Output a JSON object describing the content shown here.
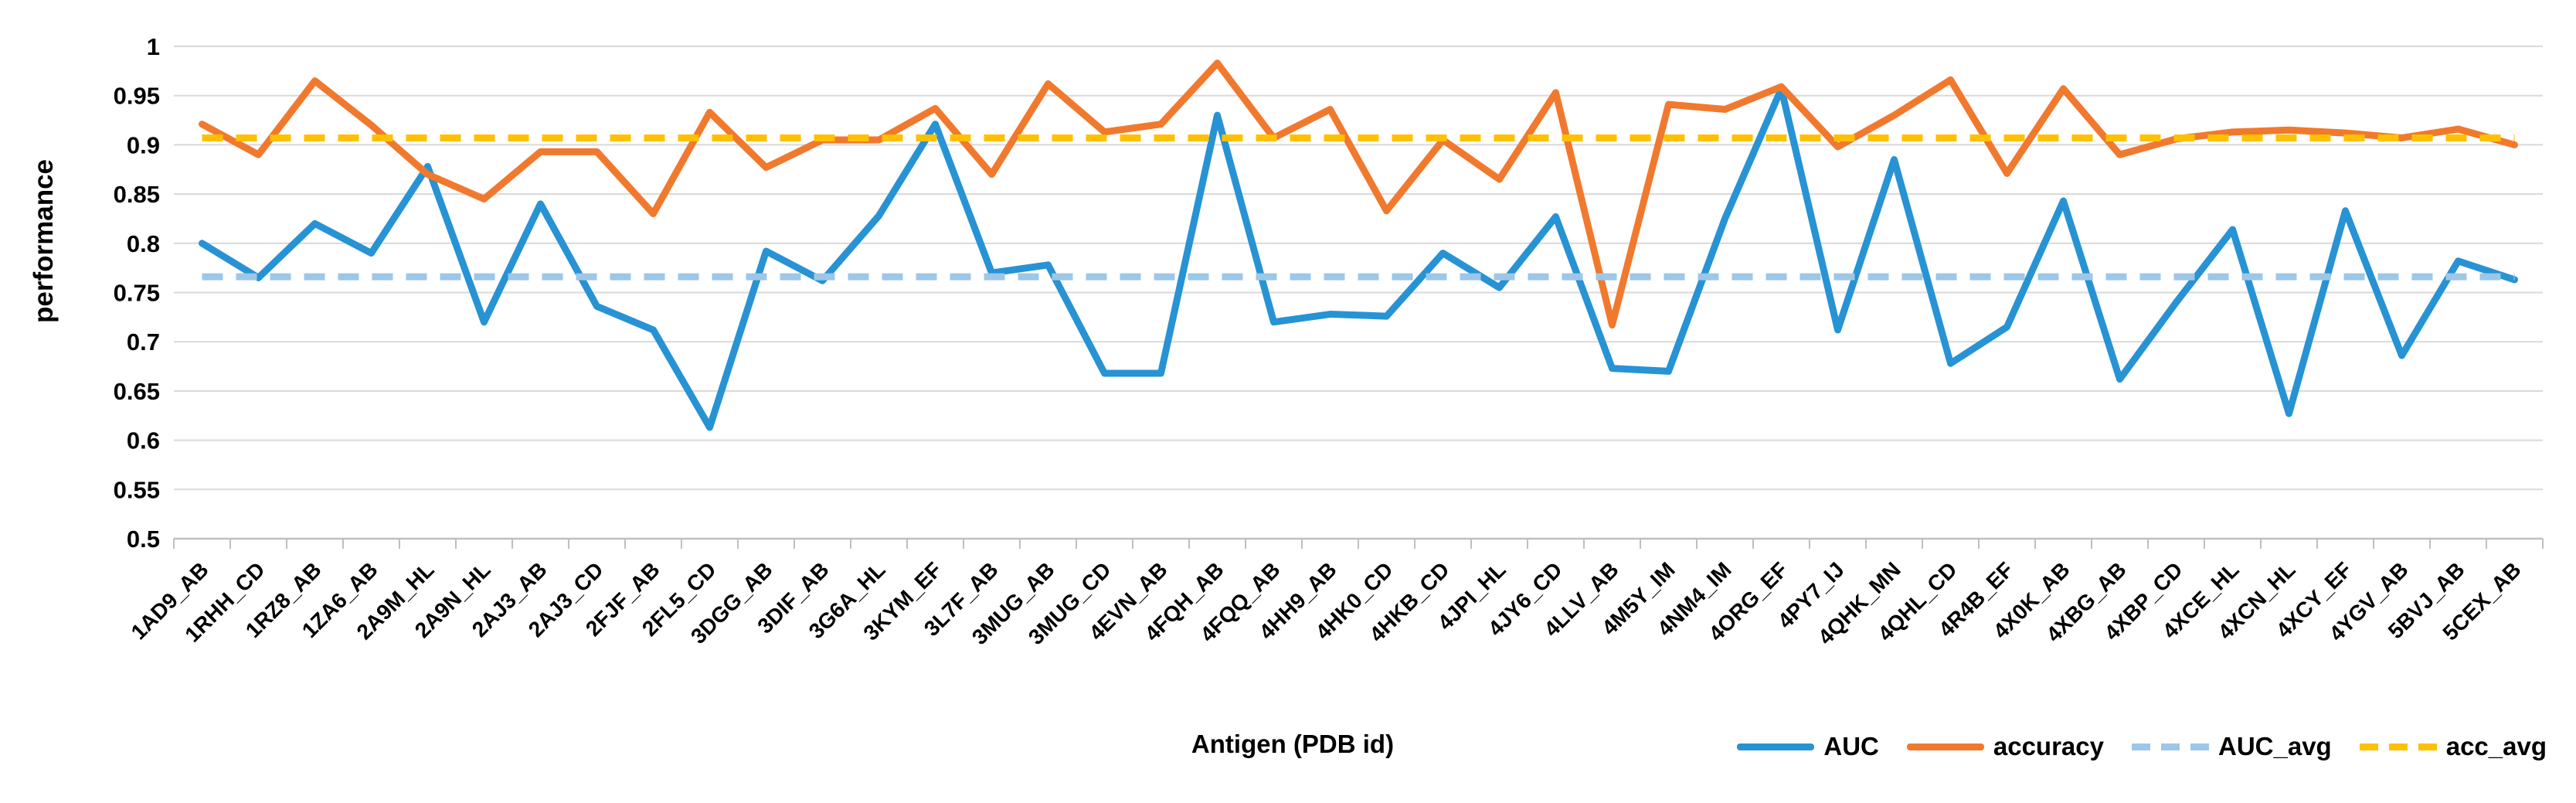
{
  "chart_data": {
    "type": "line",
    "title": "",
    "xlabel": "Antigen (PDB id)",
    "ylabel": "performance",
    "ylim": [
      0.5,
      1.0
    ],
    "ytick_step": 0.05,
    "ytick_labels": [
      "0.5",
      "0.55",
      "0.6",
      "0.65",
      "0.7",
      "0.75",
      "0.8",
      "0.85",
      "0.9",
      "0.95",
      "1"
    ],
    "grid": true,
    "legend_position": "bottom-right",
    "categories": [
      "1AD9_AB",
      "1RHH_CD",
      "1RZ8_AB",
      "1ZA6_AB",
      "2A9M_HL",
      "2A9N_HL",
      "2AJ3_AB",
      "2AJ3_CD",
      "2FJF_AB",
      "2FL5_CD",
      "3DGG_AB",
      "3DIF_AB",
      "3G6A_HL",
      "3KYM_EF",
      "3L7F_AB",
      "3MUG_AB",
      "3MUG_CD",
      "4EVN_AB",
      "4FQH_AB",
      "4FQQ_AB",
      "4HH9_AB",
      "4HK0_CD",
      "4HKB_CD",
      "4JPI_HL",
      "4JY6_CD",
      "4LLV_AB",
      "4M5Y_IM",
      "4NM4_IM",
      "4ORG_EF",
      "4PY7_IJ",
      "4QHK_MN",
      "4QHL_CD",
      "4R4B_EF",
      "4X0K_AB",
      "4XBG_AB",
      "4XBP_CD",
      "4XCE_HL",
      "4XCN_HL",
      "4XCY_EF",
      "4YGV_AB",
      "5BVJ_AB",
      "5CEX_AB"
    ],
    "series": [
      {
        "name": "AUC",
        "style": "solid",
        "color": "#2793D4",
        "values": [
          0.8,
          0.765,
          0.82,
          0.79,
          0.878,
          0.72,
          0.84,
          0.736,
          0.712,
          0.613,
          0.792,
          0.762,
          0.828,
          0.921,
          0.77,
          0.778,
          0.668,
          0.668,
          0.93,
          0.72,
          0.728,
          0.726,
          0.79,
          0.755,
          0.827,
          0.673,
          0.67,
          0.825,
          0.957,
          0.712,
          0.885,
          0.678,
          0.715,
          0.843,
          0.662,
          0.74,
          0.814,
          0.627,
          0.833,
          0.686,
          0.782,
          0.763
        ]
      },
      {
        "name": "accuracy",
        "style": "solid",
        "color": "#F1792E",
        "values": [
          0.921,
          0.89,
          0.965,
          0.92,
          0.87,
          0.845,
          0.893,
          0.893,
          0.83,
          0.933,
          0.877,
          0.905,
          0.905,
          0.937,
          0.87,
          0.962,
          0.913,
          0.921,
          0.983,
          0.907,
          0.936,
          0.833,
          0.905,
          0.865,
          0.953,
          0.717,
          0.941,
          0.936,
          0.959,
          0.898,
          0.93,
          0.966,
          0.871,
          0.957,
          0.89,
          0.906,
          0.913,
          0.915,
          0.912,
          0.907,
          0.916,
          0.9
        ]
      },
      {
        "name": "AUC_avg",
        "style": "dashed",
        "color": "#9DC7E8",
        "value": 0.766
      },
      {
        "name": "acc_avg",
        "style": "dashed",
        "color": "#FFC000",
        "value": 0.907
      }
    ]
  },
  "colors": {
    "gridline": "#D9D9D9",
    "axis": "#BFBFBF",
    "text": "#000000",
    "background": "#FFFFFF"
  }
}
